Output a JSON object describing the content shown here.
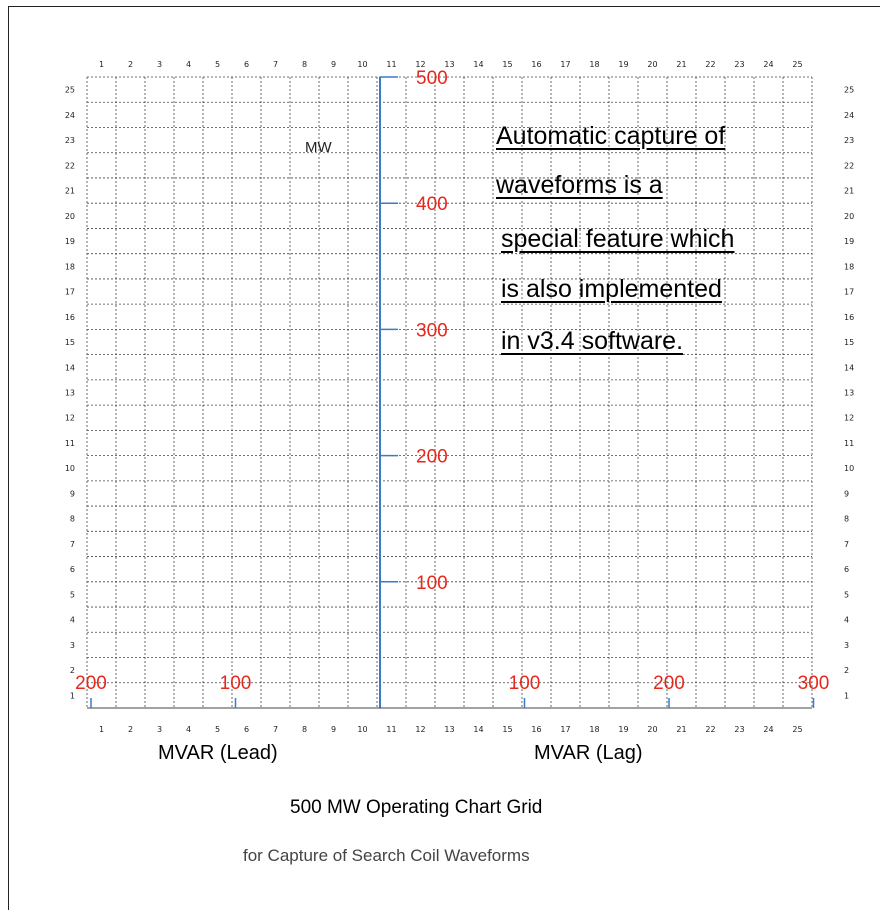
{
  "grid": {
    "column_numbers": [
      "1",
      "2",
      "3",
      "4",
      "5",
      "6",
      "7",
      "8",
      "9",
      "10",
      "11",
      "12",
      "13",
      "14",
      "15",
      "16",
      "17",
      "18",
      "19",
      "20",
      "21",
      "22",
      "23",
      "24",
      "25"
    ],
    "row_numbers": [
      "1",
      "2",
      "3",
      "4",
      "5",
      "6",
      "7",
      "8",
      "9",
      "10",
      "11",
      "12",
      "13",
      "14",
      "15",
      "16",
      "17",
      "18",
      "19",
      "20",
      "21",
      "22",
      "23",
      "24",
      "25"
    ]
  },
  "mw_axis": {
    "label": "MW",
    "ticks": [
      {
        "value": 100,
        "label": "100"
      },
      {
        "value": 200,
        "label": "200"
      },
      {
        "value": 300,
        "label": "300"
      },
      {
        "value": 400,
        "label": "400"
      },
      {
        "value": 500,
        "label": "500"
      }
    ]
  },
  "mvar_axis": {
    "ticks": [
      {
        "value": -200,
        "label": "200"
      },
      {
        "value": -100,
        "label": "100"
      },
      {
        "value": 100,
        "label": "100"
      },
      {
        "value": 200,
        "label": "200"
      },
      {
        "value": 300,
        "label": "300"
      }
    ],
    "lead_label": "MVAR (Lead)",
    "lag_label": "MVAR (Lag)"
  },
  "annotation": [
    "Automatic capture of",
    "waveforms is a",
    "special feature which",
    "is also implemented",
    "in v3.4 software."
  ],
  "title": "500 MW Operating Chart Grid",
  "subtitle": "for Capture of Search Coil Waveforms",
  "colors": {
    "axis_blue": "#3a7bc8",
    "tick_red": "#e8271c",
    "grid": "#444444"
  }
}
